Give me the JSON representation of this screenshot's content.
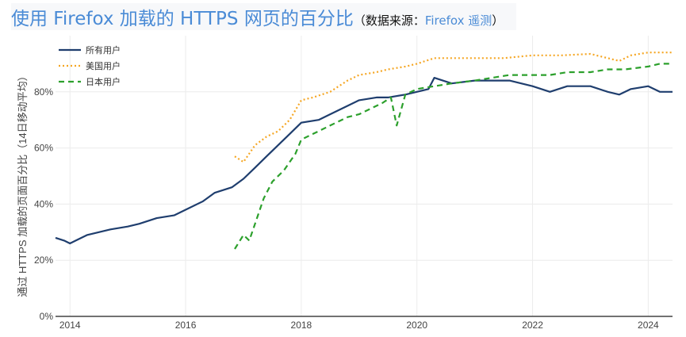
{
  "title": {
    "main": "使用 Firefox 加载的 HTTPS 网页的百分比",
    "sub_open": "（数据来源：",
    "sub_link": "Firefox 遥测",
    "sub_close": "）"
  },
  "chart_data": {
    "type": "line",
    "ylabel": "通过 HTTPS 加载的页面百分比（14日移动平均）",
    "xlabel": "",
    "xlim": [
      2013.75,
      2024.42
    ],
    "ylim": [
      0,
      100
    ],
    "xticks": [
      2014,
      2016,
      2018,
      2020,
      2022,
      2024
    ],
    "xtick_labels": [
      "2014",
      "2016",
      "2018",
      "2020",
      "2022",
      "2024"
    ],
    "yticks": [
      0,
      20,
      40,
      60,
      80
    ],
    "ytick_labels": [
      "0%",
      "20%",
      "40%",
      "60%",
      "80%"
    ],
    "legend_position": "top-left",
    "grid": true,
    "series": [
      {
        "name": "所有用户",
        "color": "#1f3e6e",
        "style": "solid",
        "x": [
          2013.75,
          2013.9,
          2014,
          2014.1,
          2014.3,
          2014.5,
          2014.7,
          2015,
          2015.2,
          2015.5,
          2015.8,
          2016,
          2016.3,
          2016.5,
          2016.8,
          2017,
          2017.2,
          2017.4,
          2017.6,
          2017.8,
          2018,
          2018.3,
          2018.5,
          2018.8,
          2019,
          2019.3,
          2019.5,
          2019.8,
          2020,
          2020.2,
          2020.3,
          2020.6,
          2021,
          2021.3,
          2021.6,
          2022,
          2022.3,
          2022.6,
          2023,
          2023.3,
          2023.5,
          2023.7,
          2024,
          2024.2,
          2024.42
        ],
        "y": [
          28,
          27,
          26,
          27,
          29,
          30,
          31,
          32,
          33,
          35,
          36,
          38,
          41,
          44,
          46,
          49,
          53,
          57,
          61,
          65,
          69,
          70,
          72,
          75,
          77,
          78,
          78,
          79,
          80,
          81,
          85,
          83,
          84,
          84,
          84,
          82,
          80,
          82,
          82,
          80,
          79,
          81,
          82,
          80,
          80
        ]
      },
      {
        "name": "美国用户",
        "color": "#f5a623",
        "style": "dotted",
        "x": [
          2016.85,
          2017,
          2017.2,
          2017.4,
          2017.6,
          2017.8,
          2018,
          2018.2,
          2018.5,
          2018.8,
          2019,
          2019.3,
          2019.5,
          2019.8,
          2020,
          2020.3,
          2020.6,
          2021,
          2021.5,
          2022,
          2022.5,
          2023,
          2023.3,
          2023.5,
          2023.7,
          2024,
          2024.2,
          2024.42
        ],
        "y": [
          57,
          55,
          61,
          64,
          66,
          70,
          77,
          78,
          80,
          84,
          86,
          87,
          88,
          89,
          90,
          92,
          92,
          92,
          92,
          93,
          93,
          93.5,
          92,
          91,
          93,
          94,
          94,
          94
        ]
      },
      {
        "name": "日本用户",
        "color": "#2ca02c",
        "style": "dashed",
        "x": [
          2016.85,
          2017,
          2017.1,
          2017.2,
          2017.35,
          2017.5,
          2017.7,
          2017.9,
          2018,
          2018.3,
          2018.5,
          2018.8,
          2019,
          2019.2,
          2019.4,
          2019.55,
          2019.65,
          2019.8,
          2020,
          2020.3,
          2020.6,
          2021,
          2021.3,
          2021.6,
          2022,
          2022.3,
          2022.6,
          2023,
          2023.3,
          2023.6,
          2024,
          2024.2,
          2024.42
        ],
        "y": [
          24,
          29,
          27,
          33,
          42,
          48,
          52,
          58,
          63,
          66,
          68,
          71,
          72,
          74,
          76,
          78,
          68,
          79,
          81,
          82,
          83,
          84,
          85,
          86,
          86,
          86,
          87,
          87,
          88,
          88,
          89,
          90,
          90
        ]
      }
    ]
  }
}
